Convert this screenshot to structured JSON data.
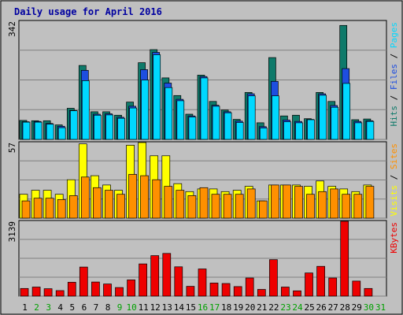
{
  "chart_data": {
    "type": "bar",
    "title": "Daily usage for April 2016",
    "categories": [
      "1",
      "2",
      "3",
      "4",
      "5",
      "6",
      "7",
      "8",
      "9",
      "10",
      "11",
      "12",
      "13",
      "14",
      "15",
      "16",
      "17",
      "18",
      "19",
      "20",
      "21",
      "22",
      "23",
      "24",
      "25",
      "26",
      "27",
      "28",
      "29",
      "30",
      "31"
    ],
    "weekend_days": [
      "2",
      "3",
      "9",
      "10",
      "16",
      "17",
      "23",
      "24",
      "30",
      "31"
    ],
    "panels": [
      {
        "name": "top",
        "ymax": 342,
        "ymax_label": "342",
        "legend": [
          "Pages",
          "Files",
          "Hits"
        ],
        "series": [
          {
            "name": "Hits",
            "color": "#0e7a6a",
            "values": [
              55,
              54,
              54,
              42,
              90,
              214,
              80,
              80,
              70,
              108,
              222,
              260,
              178,
              127,
              73,
              186,
              110,
              85,
              58,
              136,
              48,
              237,
              68,
              70,
              60,
              136,
              110,
              330,
              57,
              59,
              0
            ]
          },
          {
            "name": "Files",
            "color": "#1e4ee0",
            "values": [
              51,
              52,
              46,
              38,
              84,
              200,
              73,
              74,
              64,
              96,
              202,
              252,
              163,
              116,
              68,
              182,
              99,
              80,
              53,
              132,
              37,
              168,
              56,
              52,
              58,
              132,
              98,
              205,
              52,
              54,
              0
            ]
          },
          {
            "name": "Pages",
            "color": "#00d8ff",
            "values": [
              50,
              50,
              44,
              34,
              83,
              170,
              70,
              71,
              61,
              91,
              172,
              245,
              150,
              112,
              65,
              178,
              96,
              77,
              49,
              126,
              33,
              126,
              51,
              48,
              57,
              128,
              93,
              162,
              48,
              52,
              0
            ]
          }
        ]
      },
      {
        "name": "middle",
        "ymax": 57,
        "ymax_label": "57",
        "legend": [
          "Sites",
          "Visits"
        ],
        "series": [
          {
            "name": "Visits",
            "color": "#ffff00",
            "values": [
              18,
              21,
              21,
              18,
              29,
              56,
              32,
              25,
              21,
              55,
              57,
              47,
              47,
              26,
              20,
              22,
              22,
              20,
              21,
              24,
              13,
              25,
              25,
              25,
              24,
              28,
              24,
              22,
              20,
              25,
              0
            ]
          },
          {
            "name": "Sites",
            "color": "#ff9000",
            "values": [
              13,
              15,
              15,
              14,
              17,
              31,
              23,
              21,
              18,
              33,
              32,
              29,
              24,
              21,
              17,
              23,
              18,
              18,
              18,
              22,
              13,
              25,
              25,
              24,
              18,
              20,
              22,
              18,
              18,
              24,
              0
            ]
          }
        ]
      },
      {
        "name": "bottom",
        "ymax": 3139,
        "ymax_label": "3139",
        "legend": [
          "KBytes"
        ],
        "series": [
          {
            "name": "KBytes",
            "color": "#ee0000",
            "values": [
              320,
              380,
              310,
              230,
              580,
              1220,
              590,
              510,
              360,
              680,
              1350,
              1700,
              1790,
              1230,
              410,
              1140,
              550,
              530,
              400,
              760,
              280,
              1530,
              380,
              220,
              970,
              1250,
              760,
              3139,
              630,
              320,
              0
            ]
          }
        ]
      }
    ]
  }
}
